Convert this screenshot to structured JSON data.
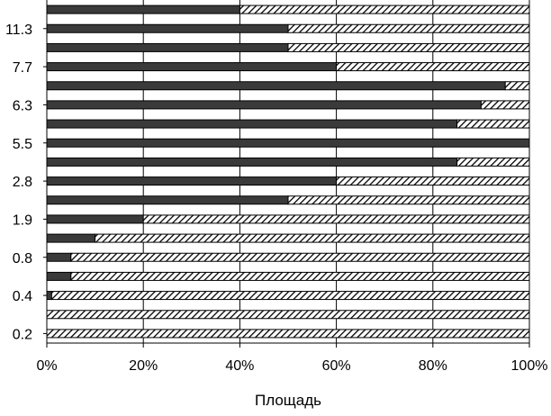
{
  "chart_data": {
    "type": "bar",
    "orientation": "horizontal",
    "stacked": "percent",
    "title": "",
    "xlabel": "Площадь",
    "ylabel": "",
    "xlim": [
      0,
      100
    ],
    "x_ticks": [
      "0%",
      "20%",
      "40%",
      "60%",
      "80%",
      "100%"
    ],
    "grid": "vertical",
    "legend": "none",
    "categories": [
      "",
      "11.3",
      "",
      "7.7",
      "",
      "6.3",
      "",
      "5.5",
      "",
      "2.8",
      "",
      "1.9",
      "",
      "0.8",
      "",
      "0.4",
      "",
      "0.2"
    ],
    "series": [
      {
        "fill": "solid",
        "color": "#3a3a3a",
        "values": [
          40,
          50,
          50,
          60,
          95,
          90,
          85,
          100,
          85,
          60,
          50,
          20,
          10,
          5,
          5,
          1,
          0,
          0
        ]
      },
      {
        "fill": "hatched",
        "color": "#ffffff",
        "values": [
          60,
          50,
          50,
          40,
          5,
          10,
          15,
          0,
          15,
          40,
          50,
          80,
          90,
          95,
          95,
          99,
          100,
          100
        ]
      }
    ]
  }
}
